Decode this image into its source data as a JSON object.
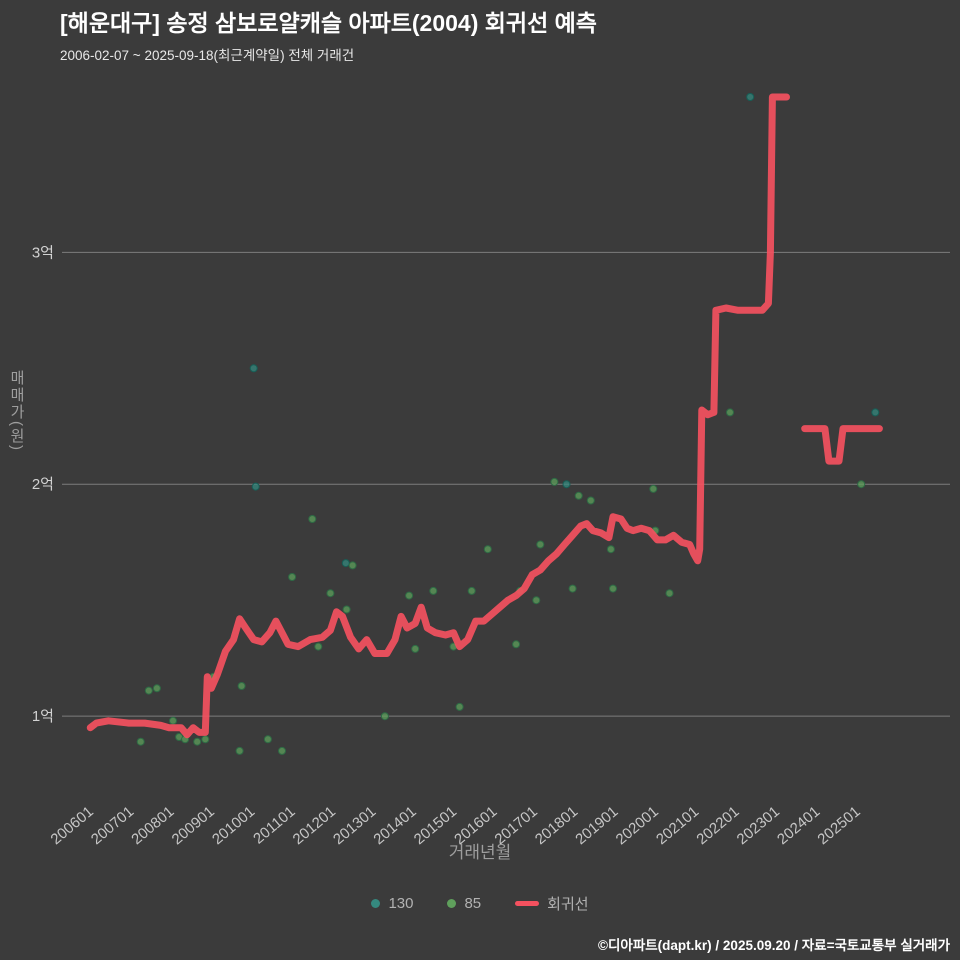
{
  "header": {
    "title": "[해운대구] 송정 삼보로얄캐슬 아파트(2004) 회귀선 예측",
    "subtitle": "2006-02-07 ~ 2025-09-18(최근계약일) 전체 거래건"
  },
  "footer": {
    "credit": "©디아파트(dapt.kr) / 2025.09.20 / 자료=국토교통부 실거래가"
  },
  "legend": [
    {
      "name": "130",
      "color": "#35897f",
      "type": "dot"
    },
    {
      "name": "85",
      "color": "#5fa05c",
      "type": "dot"
    },
    {
      "name": "회귀선",
      "color": "#f4515f",
      "type": "line"
    }
  ],
  "chart_data": {
    "type": "scatter",
    "title": "[해운대구] 송정 삼보로얄캐슬 아파트(2004) 회귀선 예측",
    "xlabel": "거래년월",
    "ylabel": "매매가(원)",
    "unit": "억원",
    "x_range": [
      2005.35,
      2027.35
    ],
    "y_range": [
      0.66,
      3.7
    ],
    "grid": true,
    "legend_position": "bottom",
    "x_ticks": [
      {
        "label": "200601",
        "value": 2006
      },
      {
        "label": "200701",
        "value": 2007
      },
      {
        "label": "200801",
        "value": 2008
      },
      {
        "label": "200901",
        "value": 2009
      },
      {
        "label": "201001",
        "value": 2010
      },
      {
        "label": "201101",
        "value": 2011
      },
      {
        "label": "201201",
        "value": 2012
      },
      {
        "label": "201301",
        "value": 2013
      },
      {
        "label": "201401",
        "value": 2014
      },
      {
        "label": "201501",
        "value": 2015
      },
      {
        "label": "201601",
        "value": 2016
      },
      {
        "label": "201701",
        "value": 2017
      },
      {
        "label": "201801",
        "value": 2018
      },
      {
        "label": "201901",
        "value": 2019
      },
      {
        "label": "202001",
        "value": 2020
      },
      {
        "label": "202101",
        "value": 2021
      },
      {
        "label": "202201",
        "value": 2022
      },
      {
        "label": "202301",
        "value": 2023
      },
      {
        "label": "202401",
        "value": 2024
      },
      {
        "label": "202501",
        "value": 2025
      }
    ],
    "y_ticks": [
      {
        "label": "1억",
        "value": 1
      },
      {
        "label": "2억",
        "value": 2
      },
      {
        "label": "3억",
        "value": 3
      }
    ],
    "series": [
      {
        "name": "130",
        "type": "scatter",
        "color": "#35897f",
        "stroke": "#175f57",
        "points": [
          [
            2010.1,
            2.5
          ],
          [
            2010.15,
            1.99
          ],
          [
            2012.38,
            1.66
          ],
          [
            2017.85,
            2.0
          ],
          [
            2022.4,
            3.67
          ],
          [
            2025.5,
            2.31
          ]
        ]
      },
      {
        "name": "85",
        "type": "scatter",
        "color": "#5fa05c",
        "stroke": "#2e6b45",
        "points": [
          [
            2007.3,
            0.89
          ],
          [
            2007.5,
            1.11
          ],
          [
            2007.7,
            1.12
          ],
          [
            2008.1,
            0.98
          ],
          [
            2008.25,
            0.91
          ],
          [
            2008.4,
            0.9
          ],
          [
            2008.7,
            0.89
          ],
          [
            2008.9,
            0.9
          ],
          [
            2009.1,
            1.17
          ],
          [
            2009.75,
            0.85
          ],
          [
            2009.8,
            1.13
          ],
          [
            2010.45,
            0.9
          ],
          [
            2010.8,
            0.85
          ],
          [
            2011.05,
            1.6
          ],
          [
            2011.55,
            1.85
          ],
          [
            2011.7,
            1.3
          ],
          [
            2012.0,
            1.53
          ],
          [
            2012.4,
            1.46
          ],
          [
            2012.55,
            1.65
          ],
          [
            2013.35,
            1.0
          ],
          [
            2013.95,
            1.52
          ],
          [
            2014.1,
            1.29
          ],
          [
            2014.55,
            1.54
          ],
          [
            2015.05,
            1.3
          ],
          [
            2015.2,
            1.04
          ],
          [
            2015.5,
            1.54
          ],
          [
            2015.9,
            1.72
          ],
          [
            2016.6,
            1.31
          ],
          [
            2016.7,
            1.54
          ],
          [
            2017.1,
            1.5
          ],
          [
            2017.2,
            1.74
          ],
          [
            2017.55,
            2.01
          ],
          [
            2018.0,
            1.55
          ],
          [
            2018.15,
            1.95
          ],
          [
            2018.45,
            1.93
          ],
          [
            2018.95,
            1.72
          ],
          [
            2019.0,
            1.55
          ],
          [
            2020.0,
            1.98
          ],
          [
            2020.05,
            1.8
          ],
          [
            2020.4,
            1.53
          ],
          [
            2021.9,
            2.31
          ],
          [
            2025.15,
            2.0
          ]
        ]
      },
      {
        "name": "회귀선",
        "type": "line",
        "color": "#f4515f",
        "width": 7,
        "segments": [
          [
            [
              2006.05,
              0.95
            ],
            [
              2006.2,
              0.97
            ],
            [
              2006.5,
              0.98
            ],
            [
              2007.0,
              0.97
            ],
            [
              2007.4,
              0.97
            ],
            [
              2007.8,
              0.96
            ],
            [
              2008.0,
              0.95
            ],
            [
              2008.3,
              0.95
            ],
            [
              2008.45,
              0.92
            ],
            [
              2008.6,
              0.95
            ],
            [
              2008.75,
              0.93
            ],
            [
              2008.9,
              0.93
            ],
            [
              2008.95,
              1.17
            ],
            [
              2009.05,
              1.12
            ],
            [
              2009.2,
              1.18
            ],
            [
              2009.4,
              1.28
            ],
            [
              2009.6,
              1.33
            ],
            [
              2009.75,
              1.42
            ],
            [
              2009.9,
              1.38
            ],
            [
              2010.1,
              1.33
            ],
            [
              2010.3,
              1.32
            ],
            [
              2010.5,
              1.36
            ],
            [
              2010.65,
              1.41
            ],
            [
              2010.8,
              1.36
            ],
            [
              2010.95,
              1.31
            ],
            [
              2011.2,
              1.3
            ],
            [
              2011.5,
              1.33
            ],
            [
              2011.8,
              1.34
            ],
            [
              2012.0,
              1.37
            ],
            [
              2012.15,
              1.45
            ],
            [
              2012.3,
              1.43
            ],
            [
              2012.5,
              1.34
            ],
            [
              2012.7,
              1.29
            ],
            [
              2012.9,
              1.33
            ],
            [
              2013.1,
              1.27
            ],
            [
              2013.4,
              1.27
            ],
            [
              2013.6,
              1.33
            ],
            [
              2013.75,
              1.43
            ],
            [
              2013.9,
              1.38
            ],
            [
              2014.1,
              1.4
            ],
            [
              2014.25,
              1.47
            ],
            [
              2014.4,
              1.38
            ],
            [
              2014.6,
              1.36
            ],
            [
              2014.85,
              1.35
            ],
            [
              2015.05,
              1.36
            ],
            [
              2015.2,
              1.3
            ],
            [
              2015.4,
              1.33
            ],
            [
              2015.6,
              1.41
            ],
            [
              2015.8,
              1.41
            ],
            [
              2016.0,
              1.44
            ],
            [
              2016.2,
              1.47
            ],
            [
              2016.4,
              1.5
            ],
            [
              2016.6,
              1.52
            ],
            [
              2016.8,
              1.55
            ],
            [
              2017.0,
              1.61
            ],
            [
              2017.2,
              1.63
            ],
            [
              2017.4,
              1.67
            ],
            [
              2017.6,
              1.7
            ],
            [
              2017.8,
              1.74
            ],
            [
              2018.0,
              1.78
            ],
            [
              2018.2,
              1.82
            ],
            [
              2018.35,
              1.83
            ],
            [
              2018.5,
              1.8
            ],
            [
              2018.7,
              1.79
            ],
            [
              2018.9,
              1.77
            ],
            [
              2019.0,
              1.86
            ],
            [
              2019.2,
              1.85
            ],
            [
              2019.35,
              1.81
            ],
            [
              2019.5,
              1.8
            ],
            [
              2019.7,
              1.81
            ],
            [
              2019.9,
              1.8
            ],
            [
              2020.1,
              1.76
            ],
            [
              2020.3,
              1.76
            ],
            [
              2020.5,
              1.78
            ],
            [
              2020.7,
              1.75
            ],
            [
              2020.9,
              1.74
            ],
            [
              2021.0,
              1.7
            ],
            [
              2021.1,
              1.67
            ],
            [
              2021.15,
              1.72
            ],
            [
              2021.2,
              2.32
            ],
            [
              2021.35,
              2.3
            ],
            [
              2021.5,
              2.31
            ],
            [
              2021.55,
              2.75
            ],
            [
              2021.8,
              2.76
            ],
            [
              2022.1,
              2.75
            ],
            [
              2022.4,
              2.75
            ],
            [
              2022.7,
              2.75
            ],
            [
              2022.85,
              2.78
            ],
            [
              2022.9,
              3.0
            ],
            [
              2022.95,
              3.67
            ],
            [
              2023.1,
              3.67
            ],
            [
              2023.3,
              3.67
            ]
          ],
          [
            [
              2023.75,
              2.24
            ],
            [
              2024.25,
              2.24
            ],
            [
              2024.35,
              2.1
            ],
            [
              2024.6,
              2.1
            ],
            [
              2024.7,
              2.24
            ],
            [
              2025.0,
              2.24
            ],
            [
              2025.3,
              2.24
            ],
            [
              2025.6,
              2.24
            ]
          ]
        ]
      }
    ]
  }
}
